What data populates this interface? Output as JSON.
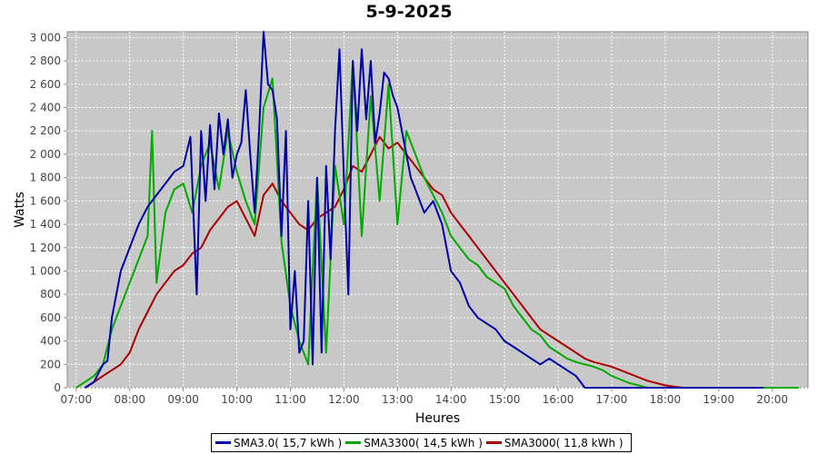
{
  "chart_data": {
    "type": "line",
    "title": "5-9-2025",
    "xlabel": "Heures",
    "ylabel": "Watts",
    "xlim": [
      "06:50",
      "20:40"
    ],
    "ylim": [
      0,
      3050
    ],
    "x_ticks": [
      "07:00",
      "08:00",
      "09:00",
      "10:00",
      "11:00",
      "12:00",
      "13:00",
      "14:00",
      "15:00",
      "16:00",
      "17:00",
      "18:00",
      "19:00",
      "20:00"
    ],
    "y_ticks": [
      "0",
      "200",
      "400",
      "600",
      "800",
      "1 000",
      "1 200",
      "1 400",
      "1 600",
      "1 800",
      "2 000",
      "2 200",
      "2 400",
      "2 600",
      "2 800",
      "3 000"
    ],
    "y_tick_values": [
      0,
      200,
      400,
      600,
      800,
      1000,
      1200,
      1400,
      1600,
      1800,
      2000,
      2200,
      2400,
      2600,
      2800,
      3000
    ],
    "grid": true,
    "legend_position": "bottom",
    "background": "#c8c8c8",
    "series": [
      {
        "name": "SMA3.0( 15,7 kWh )",
        "color": "#0000aa",
        "x": [
          "07:10",
          "07:20",
          "07:30",
          "07:35",
          "07:40",
          "07:45",
          "07:50",
          "08:00",
          "08:10",
          "08:20",
          "08:30",
          "08:40",
          "08:50",
          "09:00",
          "09:08",
          "09:15",
          "09:20",
          "09:25",
          "09:30",
          "09:35",
          "09:40",
          "09:45",
          "09:50",
          "09:55",
          "10:00",
          "10:05",
          "10:10",
          "10:15",
          "10:20",
          "10:25",
          "10:30",
          "10:35",
          "10:40",
          "10:45",
          "10:50",
          "10:55",
          "11:00",
          "11:05",
          "11:10",
          "11:15",
          "11:20",
          "11:25",
          "11:30",
          "11:35",
          "11:40",
          "11:45",
          "11:50",
          "11:55",
          "12:00",
          "12:05",
          "12:10",
          "12:15",
          "12:20",
          "12:25",
          "12:30",
          "12:35",
          "12:40",
          "12:45",
          "12:50",
          "12:55",
          "13:00",
          "13:05",
          "13:10",
          "13:15",
          "13:20",
          "13:30",
          "13:40",
          "13:50",
          "14:00",
          "14:10",
          "14:20",
          "14:30",
          "14:40",
          "14:50",
          "15:00",
          "15:10",
          "15:20",
          "15:30",
          "15:40",
          "15:50",
          "16:00",
          "16:10",
          "16:20",
          "16:30",
          "16:40",
          "16:50",
          "17:00",
          "17:10",
          "17:20",
          "17:30",
          "17:40",
          "17:50",
          "18:00",
          "18:10",
          "18:20",
          "18:30",
          "18:40",
          "18:50",
          "19:00",
          "19:10",
          "19:20",
          "19:30",
          "19:40",
          "19:50"
        ],
        "y": [
          0,
          50,
          200,
          230,
          600,
          800,
          1000,
          1200,
          1400,
          1550,
          1650,
          1750,
          1850,
          1900,
          2150,
          800,
          2200,
          1600,
          2250,
          1700,
          2350,
          2000,
          2300,
          1800,
          2000,
          2100,
          2550,
          2000,
          1500,
          2200,
          3050,
          2600,
          2550,
          2300,
          1300,
          2200,
          500,
          1000,
          300,
          400,
          1600,
          200,
          1800,
          300,
          1900,
          1100,
          2200,
          2900,
          1800,
          800,
          2800,
          2200,
          2900,
          2300,
          2800,
          2100,
          2350,
          2700,
          2650,
          2500,
          2400,
          2200,
          2000,
          1800,
          1700,
          1500,
          1600,
          1400,
          1000,
          900,
          700,
          600,
          550,
          500,
          400,
          350,
          300,
          250,
          200,
          250,
          200,
          150,
          100,
          0,
          0,
          0,
          0,
          0,
          0,
          0,
          0,
          0,
          0,
          0,
          0,
          0,
          0,
          0,
          0,
          0,
          0,
          0,
          0,
          0
        ]
      },
      {
        "name": "SMA3300( 14,5 kWh )",
        "color": "#00aa00",
        "x": [
          "07:00",
          "07:10",
          "07:20",
          "07:30",
          "07:40",
          "07:50",
          "08:00",
          "08:10",
          "08:20",
          "08:25",
          "08:30",
          "08:40",
          "08:50",
          "09:00",
          "09:10",
          "09:20",
          "09:30",
          "09:40",
          "09:50",
          "10:00",
          "10:10",
          "10:20",
          "10:30",
          "10:40",
          "10:50",
          "11:00",
          "11:10",
          "11:20",
          "11:30",
          "11:40",
          "11:50",
          "12:00",
          "12:10",
          "12:20",
          "12:30",
          "12:40",
          "12:50",
          "13:00",
          "13:10",
          "13:20",
          "13:30",
          "13:40",
          "13:50",
          "14:00",
          "14:10",
          "14:20",
          "14:30",
          "14:40",
          "14:50",
          "15:00",
          "15:10",
          "15:20",
          "15:30",
          "15:40",
          "15:50",
          "16:00",
          "16:10",
          "16:20",
          "16:30",
          "16:40",
          "16:50",
          "17:00",
          "17:10",
          "17:20",
          "17:30",
          "17:40",
          "17:50",
          "18:00",
          "18:10",
          "18:20",
          "18:30",
          "18:40",
          "18:50",
          "19:00",
          "19:10",
          "19:20",
          "19:30",
          "19:40",
          "19:50",
          "20:00",
          "20:10",
          "20:20",
          "20:30"
        ],
        "y": [
          0,
          50,
          100,
          200,
          500,
          700,
          900,
          1100,
          1300,
          2200,
          900,
          1500,
          1700,
          1750,
          1500,
          1900,
          2100,
          1700,
          2200,
          1850,
          1600,
          1400,
          2400,
          2650,
          1250,
          700,
          400,
          200,
          1800,
          300,
          1900,
          1400,
          2800,
          1300,
          2500,
          1600,
          2600,
          1400,
          2200,
          2000,
          1800,
          1650,
          1500,
          1300,
          1200,
          1100,
          1050,
          950,
          900,
          850,
          700,
          600,
          500,
          450,
          350,
          300,
          250,
          220,
          200,
          180,
          150,
          100,
          70,
          40,
          20,
          0,
          0,
          0,
          0,
          0,
          0,
          0,
          0,
          0,
          0,
          0,
          0,
          0,
          0,
          0,
          0,
          0,
          0
        ]
      },
      {
        "name": "SMA3000( 11,8 kWh )",
        "color": "#aa0000",
        "x": [
          "07:10",
          "07:20",
          "07:30",
          "07:40",
          "07:50",
          "08:00",
          "08:10",
          "08:20",
          "08:30",
          "08:40",
          "08:50",
          "09:00",
          "09:10",
          "09:20",
          "09:30",
          "09:40",
          "09:50",
          "10:00",
          "10:10",
          "10:20",
          "10:30",
          "10:40",
          "10:50",
          "11:00",
          "11:10",
          "11:20",
          "11:30",
          "11:40",
          "11:50",
          "12:00",
          "12:10",
          "12:20",
          "12:30",
          "12:40",
          "12:50",
          "13:00",
          "13:10",
          "13:20",
          "13:30",
          "13:40",
          "13:50",
          "14:00",
          "14:10",
          "14:20",
          "14:30",
          "14:40",
          "14:50",
          "15:00",
          "15:10",
          "15:20",
          "15:30",
          "15:40",
          "15:50",
          "16:00",
          "16:10",
          "16:20",
          "16:30",
          "16:40",
          "16:50",
          "17:00",
          "17:10",
          "17:20",
          "17:30",
          "17:40",
          "17:50",
          "18:00",
          "18:10",
          "18:20",
          "18:30",
          "18:40",
          "18:50",
          "19:00",
          "19:10",
          "19:20",
          "19:30",
          "19:40",
          "19:50",
          "20:00"
        ],
        "y": [
          0,
          50,
          100,
          150,
          200,
          300,
          500,
          650,
          800,
          900,
          1000,
          1050,
          1150,
          1200,
          1350,
          1450,
          1550,
          1600,
          1450,
          1300,
          1650,
          1750,
          1600,
          1500,
          1400,
          1350,
          1450,
          1500,
          1550,
          1700,
          1900,
          1850,
          2000,
          2150,
          2050,
          2100,
          2000,
          1900,
          1800,
          1700,
          1650,
          1500,
          1400,
          1300,
          1200,
          1100,
          1000,
          900,
          800,
          700,
          600,
          500,
          450,
          400,
          350,
          300,
          250,
          220,
          200,
          180,
          150,
          120,
          90,
          60,
          40,
          20,
          10,
          0,
          0,
          0,
          0,
          0,
          0,
          0,
          0,
          0,
          0,
          0
        ]
      }
    ]
  }
}
